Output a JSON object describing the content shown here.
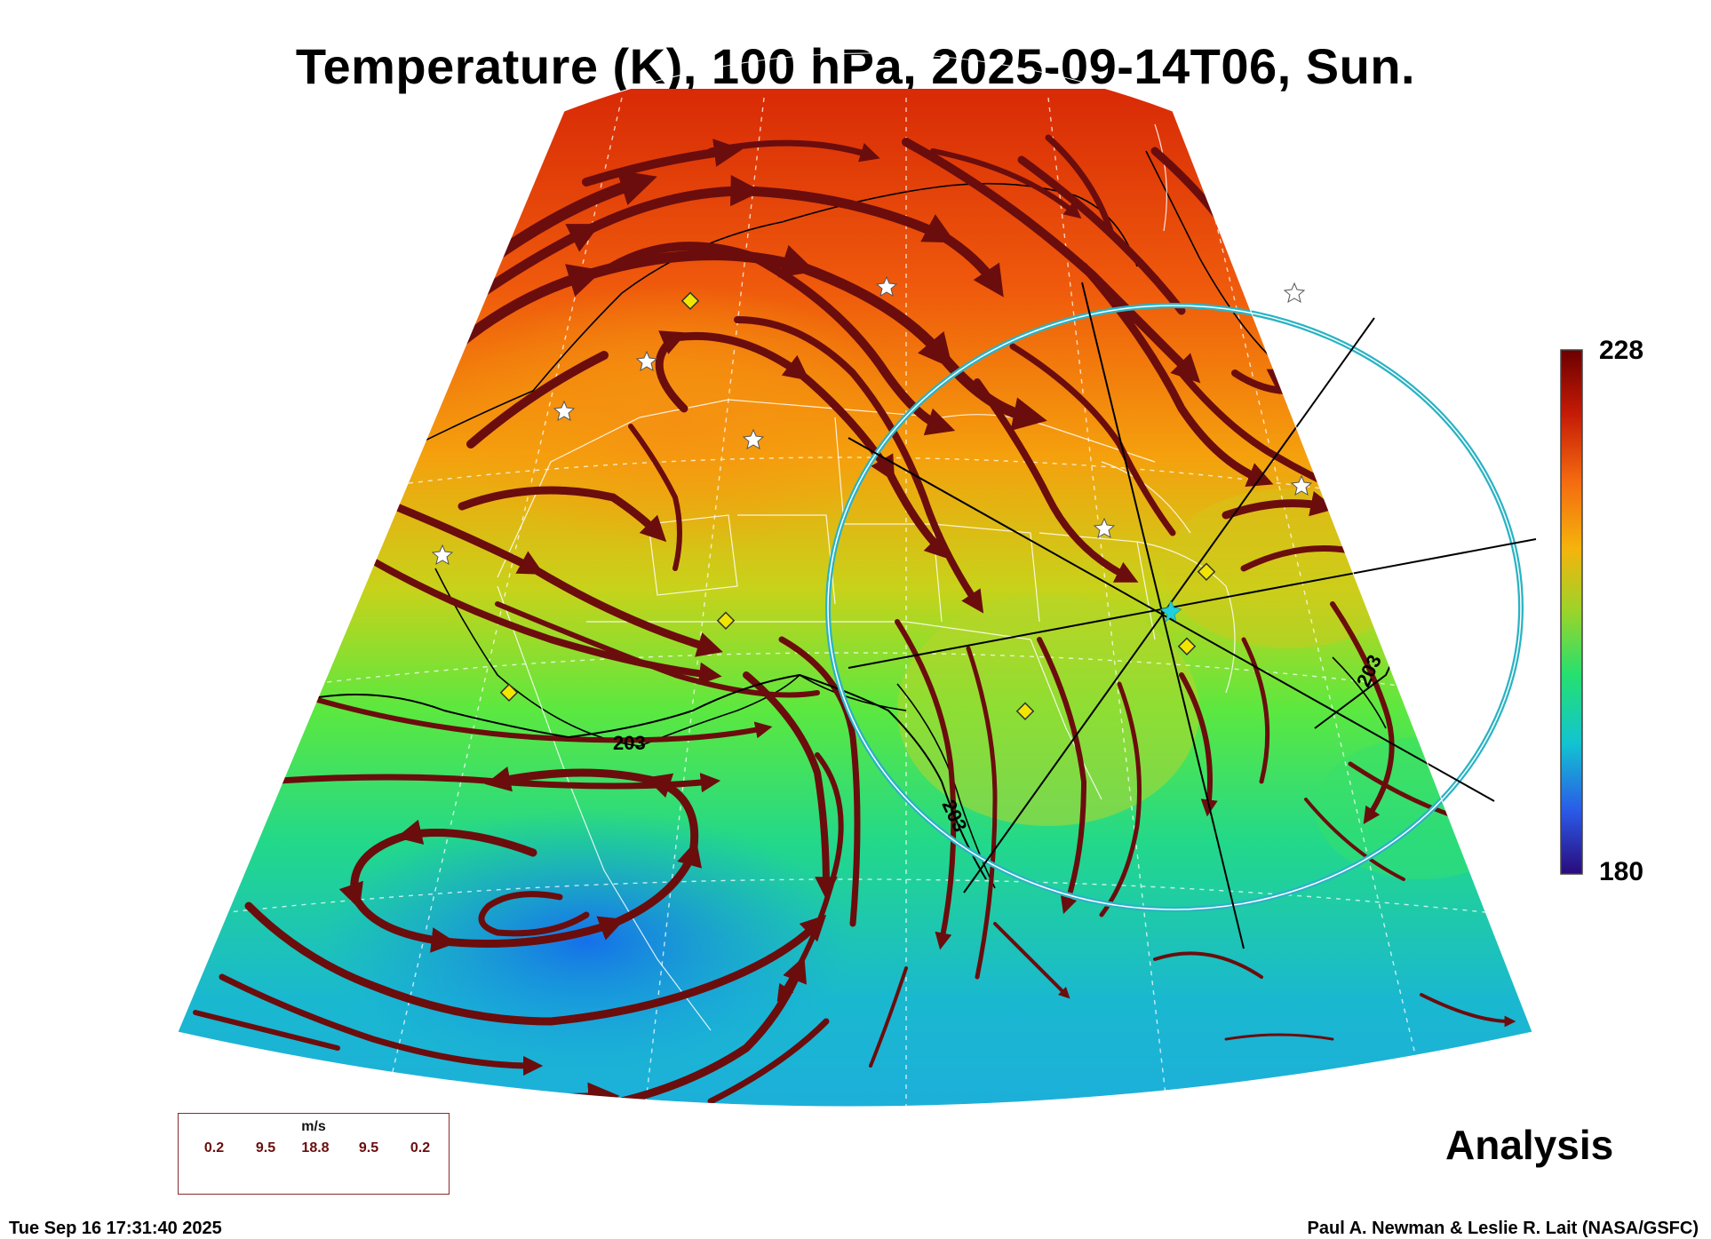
{
  "title": "Temperature (K), 100 hPa, 2025-09-14T06, Sun.",
  "colorbar": {
    "max_label": "228",
    "min_label": "180",
    "max": 228,
    "min": 180
  },
  "contour_labels": [
    "203",
    "203",
    "203"
  ],
  "product_label": "Analysis",
  "legend": {
    "unit": "m/s",
    "values": [
      "0.2",
      "9.5",
      "18.8",
      "9.5",
      "0.2"
    ]
  },
  "timestamp": "Tue Sep 16 17:31:40 2025",
  "credit": "Paul A. Newman & Leslie R. Lait (NASA/GSFC)",
  "colors": {
    "streamline": "#6b0d0d",
    "circle": "#2ab3c4",
    "marker": "#f2e600",
    "sun_center": "#1fd0e0"
  }
}
